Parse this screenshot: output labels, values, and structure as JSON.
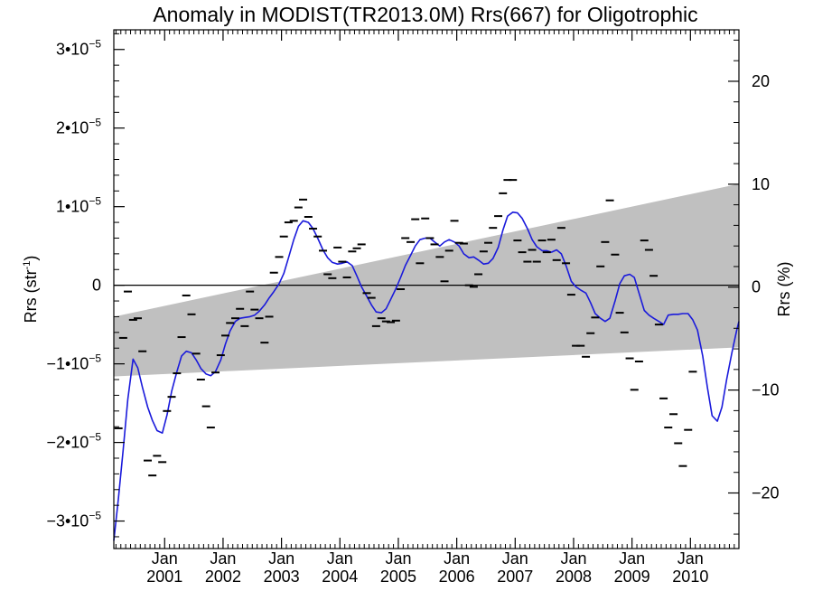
{
  "chart_data": {
    "type": "line",
    "title": "Anomaly in MODIST(TR2013.0M) Rrs(667) for Oligotrophic",
    "ylabel_left": "Rrs (str",
    "ylabel_left_sup": "-1",
    "ylabel_left_close": ")",
    "ylabel_right": "Rrs (%)",
    "xlim": [
      2000.13,
      2010.83
    ],
    "ylim": [
      -3.35e-05,
      3.25e-05
    ],
    "ylim_right": [
      -25.4,
      25.0
    ],
    "y_ticks": [
      {
        "value": 3e-05,
        "mant": "3•10",
        "exp": "−5"
      },
      {
        "value": 2e-05,
        "mant": "2•10",
        "exp": "−5"
      },
      {
        "value": 1e-05,
        "mant": "1•10",
        "exp": "−5"
      },
      {
        "value": 0,
        "mant": "0",
        "exp": ""
      },
      {
        "value": -1e-05,
        "mant": "−1•10",
        "exp": "−5"
      },
      {
        "value": -2e-05,
        "mant": "−2•10",
        "exp": "−5"
      },
      {
        "value": -3e-05,
        "mant": "−3•10",
        "exp": "−5"
      }
    ],
    "y_ticks_right": [
      {
        "value": 20,
        "label": "20"
      },
      {
        "value": 10,
        "label": "10"
      },
      {
        "value": 0,
        "label": "0"
      },
      {
        "value": -10,
        "label": "−10"
      },
      {
        "value": -20,
        "label": "−20"
      }
    ],
    "x_ticks": [
      {
        "value": 2001.0,
        "month": "Jan",
        "year": "2001"
      },
      {
        "value": 2002.0,
        "month": "Jan",
        "year": "2002"
      },
      {
        "value": 2003.0,
        "month": "Jan",
        "year": "2003"
      },
      {
        "value": 2004.0,
        "month": "Jan",
        "year": "2004"
      },
      {
        "value": 2005.0,
        "month": "Jan",
        "year": "2005"
      },
      {
        "value": 2006.0,
        "month": "Jan",
        "year": "2006"
      },
      {
        "value": 2007.0,
        "month": "Jan",
        "year": "2007"
      },
      {
        "value": 2008.0,
        "month": "Jan",
        "year": "2008"
      },
      {
        "value": 2009.0,
        "month": "Jan",
        "year": "2009"
      },
      {
        "value": 2010.0,
        "month": "Jan",
        "year": "2010"
      }
    ],
    "zero_line": 0,
    "band": {
      "color": "#c0c0c0",
      "upper": [
        [
          2000.13,
          -4e-06
        ],
        [
          2010.83,
          1.29e-05
        ]
      ],
      "lower": [
        [
          2000.13,
          -1.16e-05
        ],
        [
          2010.83,
          -7.9e-06
        ]
      ]
    },
    "series": [
      {
        "kind": "line",
        "color": "#1a1adb",
        "points": [
          [
            2000.13,
            -3.25e-05
          ],
          [
            2000.21,
            -2.7e-05
          ],
          [
            2000.29,
            -2.1e-05
          ],
          [
            2000.37,
            -1.45e-05
          ],
          [
            2000.46,
            -9.4e-06
          ],
          [
            2000.54,
            -1.05e-05
          ],
          [
            2000.62,
            -1.3e-05
          ],
          [
            2000.71,
            -1.55e-05
          ],
          [
            2000.79,
            -1.72e-05
          ],
          [
            2000.87,
            -1.85e-05
          ],
          [
            2000.96,
            -1.88e-05
          ],
          [
            2001.04,
            -1.65e-05
          ],
          [
            2001.12,
            -1.35e-05
          ],
          [
            2001.21,
            -1.1e-05
          ],
          [
            2001.29,
            -9e-06
          ],
          [
            2001.37,
            -8.4e-06
          ],
          [
            2001.46,
            -8.6e-06
          ],
          [
            2001.54,
            -9.5e-06
          ],
          [
            2001.62,
            -1.06e-05
          ],
          [
            2001.71,
            -1.13e-05
          ],
          [
            2001.79,
            -1.15e-05
          ],
          [
            2001.87,
            -1.1e-05
          ],
          [
            2001.96,
            -9.5e-06
          ],
          [
            2002.04,
            -7.5e-06
          ],
          [
            2002.12,
            -5.8e-06
          ],
          [
            2002.21,
            -4.6e-06
          ],
          [
            2002.29,
            -4.2e-06
          ],
          [
            2002.37,
            -4.1e-06
          ],
          [
            2002.46,
            -4e-06
          ],
          [
            2002.54,
            -3.8e-06
          ],
          [
            2002.62,
            -3.3e-06
          ],
          [
            2002.71,
            -2.5e-06
          ],
          [
            2002.79,
            -1.6e-06
          ],
          [
            2002.87,
            -8e-07
          ],
          [
            2002.96,
            2e-07
          ],
          [
            2003.04,
            1.5e-06
          ],
          [
            2003.12,
            3.5e-06
          ],
          [
            2003.21,
            5.8e-06
          ],
          [
            2003.29,
            7.5e-06
          ],
          [
            2003.37,
            8.2e-06
          ],
          [
            2003.46,
            8e-06
          ],
          [
            2003.54,
            7.2e-06
          ],
          [
            2003.62,
            6e-06
          ],
          [
            2003.71,
            4.5e-06
          ],
          [
            2003.79,
            3.5e-06
          ],
          [
            2003.87,
            2.9e-06
          ],
          [
            2003.96,
            2.7e-06
          ],
          [
            2004.04,
            2.8e-06
          ],
          [
            2004.12,
            3e-06
          ],
          [
            2004.21,
            2.5e-06
          ],
          [
            2004.29,
            1.2e-06
          ],
          [
            2004.37,
            -2e-07
          ],
          [
            2004.46,
            -1.4e-06
          ],
          [
            2004.54,
            -2.5e-06
          ],
          [
            2004.62,
            -3.4e-06
          ],
          [
            2004.71,
            -3.5e-06
          ],
          [
            2004.79,
            -3e-06
          ],
          [
            2004.87,
            -1.8e-06
          ],
          [
            2004.96,
            -4e-07
          ],
          [
            2005.04,
            1e-06
          ],
          [
            2005.12,
            2.5e-06
          ],
          [
            2005.21,
            3.8e-06
          ],
          [
            2005.29,
            5e-06
          ],
          [
            2005.37,
            5.8e-06
          ],
          [
            2005.46,
            6e-06
          ],
          [
            2005.54,
            6e-06
          ],
          [
            2005.62,
            5.5e-06
          ],
          [
            2005.71,
            5e-06
          ],
          [
            2005.79,
            5.5e-06
          ],
          [
            2005.87,
            5.8e-06
          ],
          [
            2005.96,
            5.5e-06
          ],
          [
            2006.04,
            5e-06
          ],
          [
            2006.12,
            4e-06
          ],
          [
            2006.21,
            3.5e-06
          ],
          [
            2006.29,
            3.6e-06
          ],
          [
            2006.37,
            3.2e-06
          ],
          [
            2006.46,
            2.7e-06
          ],
          [
            2006.54,
            2.8e-06
          ],
          [
            2006.62,
            3.4e-06
          ],
          [
            2006.71,
            4.8e-06
          ],
          [
            2006.79,
            7e-06
          ],
          [
            2006.87,
            8.8e-06
          ],
          [
            2006.96,
            9.3e-06
          ],
          [
            2007.04,
            9.2e-06
          ],
          [
            2007.12,
            8.5e-06
          ],
          [
            2007.21,
            7.2e-06
          ],
          [
            2007.29,
            5.8e-06
          ],
          [
            2007.37,
            4.9e-06
          ],
          [
            2007.46,
            4.4e-06
          ],
          [
            2007.54,
            4.4e-06
          ],
          [
            2007.62,
            4.2e-06
          ],
          [
            2007.71,
            4.5e-06
          ],
          [
            2007.79,
            4e-06
          ],
          [
            2007.87,
            2.5e-06
          ],
          [
            2007.96,
            5e-07
          ],
          [
            2008.04,
            -2e-07
          ],
          [
            2008.12,
            -6e-07
          ],
          [
            2008.21,
            -1e-06
          ],
          [
            2008.29,
            -2.2e-06
          ],
          [
            2008.37,
            -3.6e-06
          ],
          [
            2008.46,
            -4.2e-06
          ],
          [
            2008.54,
            -4.6e-06
          ],
          [
            2008.62,
            -4.2e-06
          ],
          [
            2008.71,
            -2e-06
          ],
          [
            2008.79,
            2e-07
          ],
          [
            2008.87,
            1.2e-06
          ],
          [
            2008.96,
            1.4e-06
          ],
          [
            2009.04,
            1e-06
          ],
          [
            2009.12,
            -1e-06
          ],
          [
            2009.21,
            -3.2e-06
          ],
          [
            2009.29,
            -3.8e-06
          ],
          [
            2009.37,
            -4.2e-06
          ],
          [
            2009.46,
            -4.6e-06
          ],
          [
            2009.54,
            -5e-06
          ],
          [
            2009.62,
            -3.8e-06
          ],
          [
            2009.71,
            -3.7e-06
          ],
          [
            2009.79,
            -3.7e-06
          ],
          [
            2009.87,
            -3.6e-06
          ],
          [
            2009.96,
            -3.6e-06
          ],
          [
            2010.04,
            -4.4e-06
          ],
          [
            2010.12,
            -5.7e-06
          ],
          [
            2010.21,
            -9e-06
          ],
          [
            2010.29,
            -1.3e-05
          ],
          [
            2010.37,
            -1.66e-05
          ],
          [
            2010.46,
            -1.73e-05
          ],
          [
            2010.54,
            -1.55e-05
          ],
          [
            2010.62,
            -1.2e-05
          ],
          [
            2010.71,
            -8.6e-06
          ],
          [
            2010.79,
            -5.8e-06
          ],
          [
            2010.83,
            -4.6e-06
          ]
        ]
      },
      {
        "kind": "markers",
        "marker": "dash",
        "color": "#000000",
        "points": [
          [
            2000.21,
            -1.82e-05
          ],
          [
            2000.29,
            -6.7e-06
          ],
          [
            2000.37,
            -8e-07
          ],
          [
            2000.46,
            -4.4e-06
          ],
          [
            2000.54,
            -4.2e-06
          ],
          [
            2000.62,
            -8.4e-06
          ],
          [
            2000.71,
            -2.23e-05
          ],
          [
            2000.79,
            -2.42e-05
          ],
          [
            2000.87,
            -2.17e-05
          ],
          [
            2000.96,
            -2.25e-05
          ],
          [
            2001.04,
            -1.6e-05
          ],
          [
            2001.12,
            -1.42e-05
          ],
          [
            2001.21,
            -1.12e-05
          ],
          [
            2001.29,
            -6.6e-06
          ],
          [
            2001.37,
            -1.3e-06
          ],
          [
            2001.46,
            -3.7e-06
          ],
          [
            2001.54,
            -8.7e-06
          ],
          [
            2001.62,
            -1.2e-05
          ],
          [
            2001.71,
            -1.54e-05
          ],
          [
            2001.79,
            -1.81e-05
          ],
          [
            2001.87,
            -1.11e-05
          ],
          [
            2001.96,
            -8.9e-06
          ],
          [
            2002.04,
            -6.4e-06
          ],
          [
            2002.12,
            -4.8e-06
          ],
          [
            2002.21,
            -4.2e-06
          ],
          [
            2002.29,
            -3e-06
          ],
          [
            2002.37,
            -5.2e-06
          ],
          [
            2002.46,
            -8e-07
          ],
          [
            2002.54,
            -3.1e-06
          ],
          [
            2002.62,
            -4.2e-06
          ],
          [
            2002.71,
            -7.3e-06
          ],
          [
            2002.79,
            -4e-06
          ],
          [
            2002.87,
            1.6e-06
          ],
          [
            2002.96,
            3.6e-06
          ],
          [
            2003.04,
            6.2e-06
          ],
          [
            2003.12,
            8e-06
          ],
          [
            2003.21,
            8.2e-06
          ],
          [
            2003.29,
            9.9e-06
          ],
          [
            2003.37,
            1.09e-05
          ],
          [
            2003.46,
            8.7e-06
          ],
          [
            2003.54,
            7.2e-06
          ],
          [
            2003.62,
            6.2e-06
          ],
          [
            2003.71,
            4.4e-06
          ],
          [
            2003.79,
            1.4e-06
          ],
          [
            2003.87,
            9e-07
          ],
          [
            2003.96,
            4.8e-06
          ],
          [
            2004.04,
            3e-06
          ],
          [
            2004.12,
            1e-06
          ],
          [
            2004.21,
            4.3e-06
          ],
          [
            2004.29,
            4.7e-06
          ],
          [
            2004.37,
            5.2e-06
          ],
          [
            2004.46,
            -1e-06
          ],
          [
            2004.54,
            -1.6e-06
          ],
          [
            2004.62,
            -5.2e-06
          ],
          [
            2004.71,
            -4.2e-06
          ],
          [
            2004.79,
            -4.6e-06
          ],
          [
            2004.87,
            -4.7e-06
          ],
          [
            2004.96,
            -4.5e-06
          ],
          [
            2005.04,
            -5e-07
          ],
          [
            2005.12,
            6e-06
          ],
          [
            2005.21,
            5.5e-06
          ],
          [
            2005.29,
            8.4e-06
          ],
          [
            2005.37,
            2.8e-06
          ],
          [
            2005.46,
            8.5e-06
          ],
          [
            2005.54,
            6e-06
          ],
          [
            2005.62,
            5.2e-06
          ],
          [
            2005.71,
            3.6e-06
          ],
          [
            2005.79,
            5e-07
          ],
          [
            2005.87,
            4.4e-06
          ],
          [
            2005.96,
            8.2e-06
          ],
          [
            2006.04,
            5.4e-06
          ],
          [
            2006.12,
            5.3e-06
          ],
          [
            2006.21,
            0.0
          ],
          [
            2006.29,
            -2e-07
          ],
          [
            2006.37,
            1.4e-06
          ],
          [
            2006.46,
            4.3e-06
          ],
          [
            2006.54,
            5.4e-06
          ],
          [
            2006.62,
            7.3e-06
          ],
          [
            2006.71,
            8.8e-06
          ],
          [
            2006.79,
            1.17e-05
          ],
          [
            2006.87,
            1.34e-05
          ],
          [
            2006.96,
            1.34e-05
          ],
          [
            2007.04,
            5.7e-06
          ],
          [
            2007.12,
            4.2e-06
          ],
          [
            2007.21,
            3e-06
          ],
          [
            2007.29,
            4.5e-06
          ],
          [
            2007.37,
            3e-06
          ],
          [
            2007.46,
            5.7e-06
          ],
          [
            2007.54,
            4.2e-06
          ],
          [
            2007.62,
            5.8e-06
          ],
          [
            2007.71,
            3.2e-06
          ],
          [
            2007.79,
            7.3e-06
          ],
          [
            2007.87,
            2.8e-06
          ],
          [
            2007.96,
            -1.2e-06
          ],
          [
            2008.04,
            -7.7e-06
          ],
          [
            2008.12,
            -7.7e-06
          ],
          [
            2008.21,
            -9.1e-06
          ],
          [
            2008.29,
            -6.1e-06
          ],
          [
            2008.37,
            -4.1e-06
          ],
          [
            2008.46,
            2.4e-06
          ],
          [
            2008.54,
            5.5e-06
          ],
          [
            2008.62,
            1.08e-05
          ],
          [
            2008.71,
            3.9e-06
          ],
          [
            2008.79,
            -3.5e-06
          ],
          [
            2008.87,
            -6e-06
          ],
          [
            2008.96,
            -9.3e-06
          ],
          [
            2009.04,
            -1.33e-05
          ],
          [
            2009.12,
            -9.7e-06
          ],
          [
            2009.21,
            5.7e-06
          ],
          [
            2009.29,
            4.5e-06
          ],
          [
            2009.37,
            1.2e-06
          ],
          [
            2009.46,
            -5e-06
          ],
          [
            2009.54,
            -1.44e-05
          ],
          [
            2009.62,
            -1.81e-05
          ],
          [
            2009.71,
            -1.64e-05
          ],
          [
            2009.79,
            -2.01e-05
          ],
          [
            2009.87,
            -2.3e-05
          ],
          [
            2009.96,
            -1.84e-05
          ],
          [
            2010.04,
            -1.1e-05
          ]
        ]
      }
    ]
  }
}
